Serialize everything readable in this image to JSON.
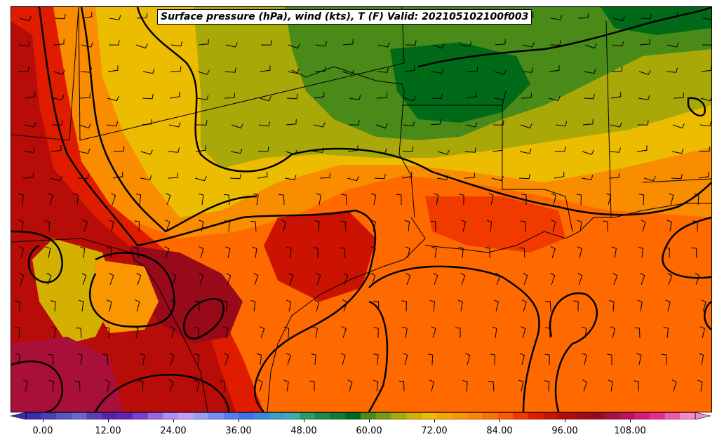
{
  "title": "Surface pressure (hPa), wind (kts), T (F) Valid: 202105102100f003",
  "colorbar": {
    "ticks": [
      "0.00",
      "12.00",
      "24.00",
      "36.00",
      "48.00",
      "60.00",
      "72.00",
      "84.00",
      "96.00",
      "108.00"
    ],
    "colors": [
      "#3a2bb0",
      "#4a3fb8",
      "#5a55bf",
      "#6a68c6",
      "#5d3fb5",
      "#5a22aa",
      "#6b20b5",
      "#7a3fd0",
      "#9966e0",
      "#b38ef0",
      "#c79cf5",
      "#9a9cf5",
      "#7a8cf5",
      "#5a7cf0",
      "#3f72e8",
      "#3a88d8",
      "#3aa0c8",
      "#3aaeaa",
      "#2a9a6a",
      "#1f8a48",
      "#127a32",
      "#006a18",
      "#4a8a18",
      "#7a9a10",
      "#a8a808",
      "#d4b000",
      "#ecbc00",
      "#f5a800",
      "#fa9600",
      "#ff8400",
      "#ff7000",
      "#ff5a00",
      "#f03a00",
      "#e01c00",
      "#cc1200",
      "#b80c08",
      "#a80a10",
      "#980a1a",
      "#a8103a",
      "#c0105a",
      "#d81a7a",
      "#e82c92",
      "#f05aa8",
      "#f888c8"
    ]
  },
  "layers": {
    "temperature_fill": "2-m temperature (F)",
    "isobars": "surface pressure (hPa)",
    "barbs": "wind (kts)"
  }
}
